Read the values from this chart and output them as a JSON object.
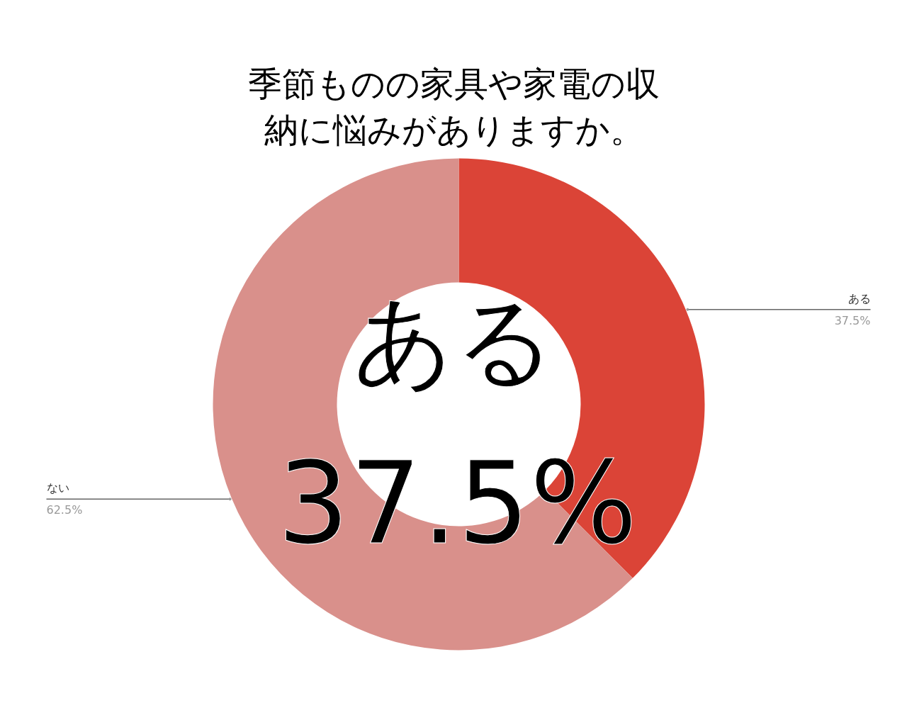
{
  "chart_data": {
    "type": "donut",
    "title": "季節ものの家具や家電の収納に悩みがありますか。",
    "categories": [
      "ある",
      "ない"
    ],
    "values": [
      37.5,
      62.5
    ],
    "colors": [
      "#db4437",
      "#d9908b"
    ],
    "value_labels": [
      "37.5%",
      "62.5%"
    ],
    "annotations": [
      "ある",
      "37.5%"
    ]
  }
}
